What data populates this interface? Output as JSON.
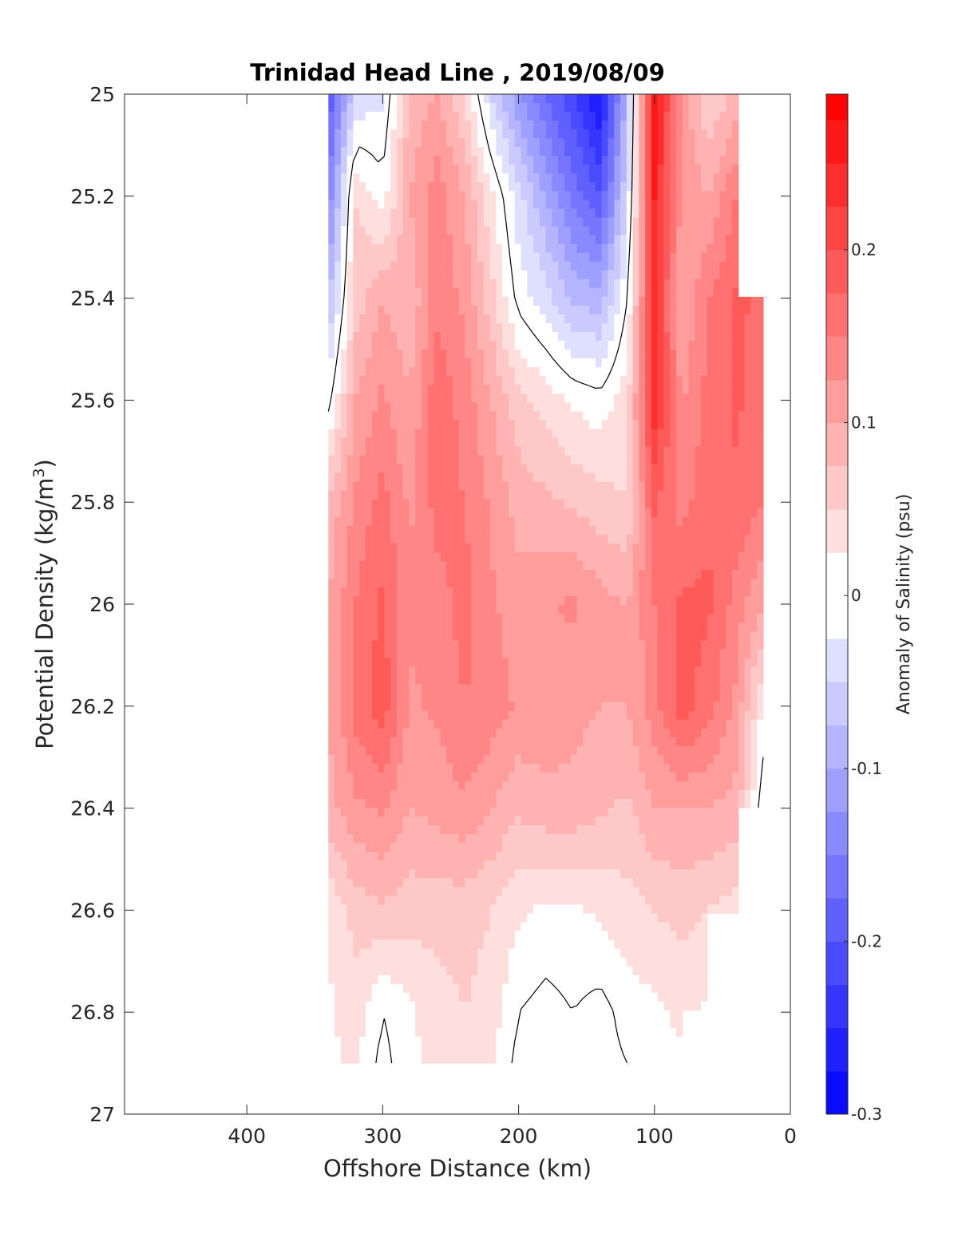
{
  "chart_data": {
    "type": "heatmap",
    "title": "Trinidad Head Line , 2019/08/09",
    "xlabel": "Offshore Distance (km)",
    "ylabel": "Potential Density (kg/m",
    "ylabel_sup": "3",
    "ylabel_close": ")",
    "xlim": [
      490,
      0
    ],
    "ylim": [
      25,
      27
    ],
    "x_ticks": [
      400,
      300,
      200,
      100,
      0
    ],
    "x_tick_labels": [
      "400",
      "300",
      "200",
      "100",
      "0"
    ],
    "y_ticks": [
      25,
      25.2,
      25.4,
      25.6,
      25.8,
      26,
      26.2,
      26.4,
      26.6,
      26.8,
      27
    ],
    "y_tick_labels": [
      "25",
      "25.2",
      "25.4",
      "25.6",
      "25.8",
      "26",
      "26.2",
      "26.4",
      "26.6",
      "26.8",
      "27"
    ],
    "colorbar": {
      "label": "Anomaly of Salinity (psu)",
      "range": [
        -0.3,
        0.29
      ],
      "ticks": [
        -0.3,
        -0.2,
        -0.1,
        0,
        0.1,
        0.2
      ],
      "tick_labels": [
        "-0.3",
        "-0.2",
        "-0.1",
        "0",
        "0.1",
        "0.2"
      ],
      "colormap": "blue-white-red",
      "negative_color": "#0000ff",
      "zero_color": "#ffffff",
      "positive_color": "#ff0000"
    },
    "contour_level": 0,
    "contour_color": "#000000",
    "x": [
      340,
      320,
      300,
      280,
      260,
      240,
      220,
      200,
      180,
      160,
      140,
      120,
      100,
      80,
      60,
      40,
      20
    ],
    "y": [
      25,
      25.2,
      25.4,
      25.6,
      25.8,
      26,
      26.2,
      26.4,
      26.6,
      26.8,
      26.9
    ],
    "z": [
      [
        -0.2,
        -0.05,
        -0.03,
        0.08,
        0.1,
        0.05,
        -0.05,
        -0.12,
        -0.18,
        -0.22,
        -0.28,
        -0.08,
        0.27,
        0.12,
        0.05,
        0.08,
        null
      ],
      [
        -0.15,
        0.05,
        0.01,
        0.1,
        0.14,
        0.1,
        0.03,
        -0.04,
        -0.1,
        -0.16,
        -0.2,
        -0.05,
        0.25,
        0.12,
        0.1,
        0.15,
        null
      ],
      [
        -0.08,
        0.06,
        0.1,
        0.08,
        0.14,
        0.12,
        0.06,
        -0.01,
        -0.04,
        -0.08,
        -0.09,
        0.0,
        0.23,
        0.1,
        0.15,
        0.18,
        0.17
      ],
      [
        -0.01,
        0.1,
        0.13,
        0.1,
        0.17,
        0.14,
        0.1,
        0.06,
        0.04,
        0.02,
        0.01,
        0.04,
        0.24,
        0.12,
        0.16,
        0.18,
        0.16
      ],
      [
        0.08,
        0.13,
        0.16,
        0.12,
        0.16,
        0.15,
        0.12,
        0.09,
        0.08,
        0.07,
        0.06,
        0.05,
        0.18,
        0.14,
        0.17,
        0.17,
        0.15
      ],
      [
        0.1,
        0.15,
        0.18,
        0.13,
        0.14,
        0.16,
        0.13,
        0.11,
        0.12,
        0.13,
        0.11,
        0.1,
        0.15,
        0.18,
        0.18,
        0.14,
        0.1
      ],
      [
        0.1,
        0.16,
        0.19,
        0.12,
        0.13,
        0.15,
        0.14,
        0.12,
        0.12,
        0.11,
        0.1,
        0.1,
        0.14,
        0.19,
        0.16,
        0.12,
        0.02
      ],
      [
        0.09,
        0.12,
        0.13,
        0.1,
        0.11,
        0.12,
        0.1,
        0.08,
        0.09,
        0.09,
        0.08,
        0.07,
        0.1,
        0.1,
        0.1,
        0.09,
        -0.02
      ],
      [
        0.03,
        0.06,
        0.07,
        0.06,
        0.06,
        0.06,
        0.05,
        0.03,
        0.02,
        0.02,
        0.03,
        0.04,
        0.05,
        0.06,
        0.05,
        0.04,
        null
      ],
      [
        0.02,
        0.04,
        0.0,
        0.02,
        0.04,
        0.05,
        0.04,
        0.0,
        -0.01,
        0.0,
        -0.01,
        0.01,
        0.02,
        0.03,
        0.02,
        null,
        null
      ],
      [
        0.02,
        0.03,
        -0.01,
        0.02,
        0.03,
        0.04,
        0.03,
        -0.01,
        -0.01,
        0.0,
        -0.01,
        0.0,
        0.02,
        0.02,
        null,
        null,
        null
      ]
    ]
  }
}
